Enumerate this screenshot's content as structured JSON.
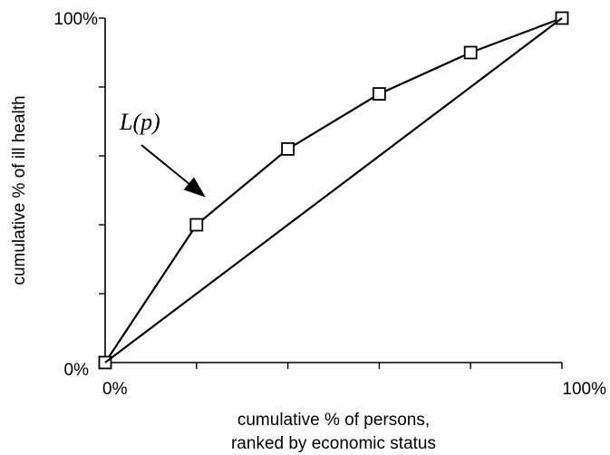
{
  "chart_data": {
    "type": "line",
    "title": "",
    "xlabel_lines": [
      "cumulative % of persons,",
      "ranked by economic status"
    ],
    "ylabel": "cumulative % of ill health",
    "xlim": [
      0,
      100
    ],
    "ylim": [
      0,
      100
    ],
    "x_tick_labels": {
      "min": "0%",
      "max": "100%"
    },
    "y_tick_labels": {
      "min": "0%",
      "max": "100%"
    },
    "minor_ticks": [
      20,
      40,
      60,
      80
    ],
    "grid": false,
    "legend": "none",
    "series": [
      {
        "name": "L(p)",
        "marker": "square",
        "x": [
          0,
          20,
          40,
          60,
          80,
          100
        ],
        "y": [
          0,
          40,
          62,
          78,
          90,
          100
        ]
      },
      {
        "name": "",
        "marker": "none",
        "x": [
          0,
          100
        ],
        "y": [
          0,
          100
        ]
      }
    ],
    "annotations": [
      {
        "text": "L(p)",
        "points_to_x": 22,
        "points_to_y": 48
      }
    ],
    "colors": {
      "line": "#000000",
      "background": "#ffffff"
    }
  }
}
